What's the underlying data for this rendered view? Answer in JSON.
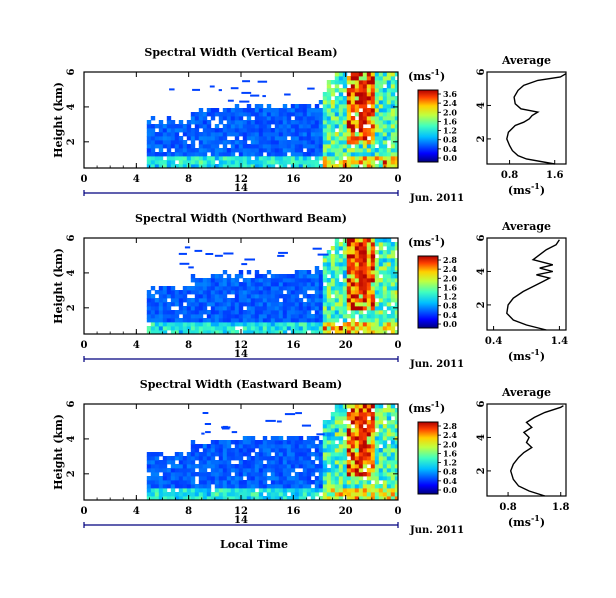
{
  "chart_data": [
    {
      "type": "heatmap",
      "title": "Spectral Width (Vertical Beam)",
      "ylabel": "Height (km)",
      "xlabel": "",
      "x_ticks": [
        "0",
        "4",
        "8",
        "12",
        "16",
        "20",
        "0"
      ],
      "y_ticks": [
        "2",
        "4",
        "6"
      ],
      "xlim": [
        0,
        24
      ],
      "ylim": [
        0.5,
        6
      ],
      "date_label": "Jun. 2011",
      "date_axis_label": "14",
      "colorbar": {
        "unit": "(ms",
        "unit_sup": "-1",
        "unit_close": ")",
        "ticks": [
          "3.6",
          "2.4",
          "2.0",
          "1.6",
          "1.2",
          "0.8",
          "0.4",
          "0.0"
        ]
      },
      "profile": {
        "title": "Average",
        "xlabel": "(ms",
        "xlabel_sup": "-1",
        "xlabel_close": ")",
        "x_ticks": [
          "0.8",
          "1.6"
        ],
        "xlim": [
          0.4,
          1.8
        ],
        "y_ticks": [
          "2",
          "4",
          "6"
        ],
        "ylim": [
          0.5,
          6
        ],
        "height_km": [
          0.5,
          0.8,
          1.0,
          1.3,
          1.6,
          2.0,
          2.4,
          2.8,
          3.0,
          3.2,
          3.4,
          3.6,
          3.8,
          4.1,
          4.5,
          4.9,
          5.2,
          5.5,
          5.7,
          5.9
        ],
        "width_ms": [
          1.6,
          1.1,
          0.95,
          0.85,
          0.8,
          0.75,
          0.78,
          0.9,
          1.05,
          1.15,
          1.2,
          1.3,
          1.0,
          0.9,
          0.88,
          0.95,
          1.05,
          1.3,
          1.7,
          1.8
        ]
      }
    },
    {
      "type": "heatmap",
      "title": "Spectral Width (Northward Beam)",
      "ylabel": "Height (km)",
      "xlabel": "",
      "x_ticks": [
        "0",
        "4",
        "8",
        "12",
        "16",
        "20",
        "0"
      ],
      "y_ticks": [
        "2",
        "4",
        "6"
      ],
      "xlim": [
        0,
        24
      ],
      "ylim": [
        0.5,
        6
      ],
      "date_label": "Jun. 2011",
      "date_axis_label": "14",
      "colorbar": {
        "unit": "(ms",
        "unit_sup": "-1",
        "unit_close": ")",
        "ticks": [
          "2.8",
          "2.4",
          "2.0",
          "1.6",
          "1.2",
          "0.8",
          "0.4",
          "0.0"
        ]
      },
      "profile": {
        "title": "Average",
        "xlabel": "(ms",
        "xlabel_sup": "-1",
        "xlabel_close": ")",
        "x_ticks": [
          "0.4",
          "1.4"
        ],
        "xlim": [
          0.3,
          1.5
        ],
        "y_ticks": [
          "2",
          "4",
          "6"
        ],
        "ylim": [
          0.5,
          6
        ],
        "height_km": [
          0.5,
          0.8,
          1.1,
          1.5,
          2.0,
          2.4,
          2.8,
          3.1,
          3.4,
          3.6,
          3.8,
          4.0,
          4.2,
          4.4,
          4.7,
          5.0,
          5.3,
          5.6,
          5.9
        ],
        "width_ms": [
          1.2,
          0.9,
          0.7,
          0.6,
          0.62,
          0.7,
          0.85,
          1.0,
          1.15,
          1.25,
          1.05,
          1.3,
          1.1,
          1.3,
          1.0,
          1.1,
          1.2,
          1.35,
          1.4
        ]
      }
    },
    {
      "type": "heatmap",
      "title": "Spectral Width (Eastward Beam)",
      "ylabel": "Height (km)",
      "xlabel": "Local Time",
      "x_ticks": [
        "0",
        "4",
        "8",
        "12",
        "16",
        "20",
        "0"
      ],
      "y_ticks": [
        "2",
        "4",
        "6"
      ],
      "xlim": [
        0,
        24
      ],
      "ylim": [
        0.5,
        6
      ],
      "date_label": "Jun. 2011",
      "date_axis_label": "14",
      "colorbar": {
        "unit": "(ms",
        "unit_sup": "-1",
        "unit_close": ")",
        "ticks": [
          "2.8",
          "2.4",
          "2.0",
          "1.6",
          "1.2",
          "0.8",
          "0.4",
          "0.0"
        ]
      },
      "profile": {
        "title": "Average",
        "xlabel": "(ms",
        "xlabel_sup": "-1",
        "xlabel_close": ")",
        "x_ticks": [
          "0.8",
          "1.8"
        ],
        "xlim": [
          0.4,
          1.9
        ],
        "y_ticks": [
          "2",
          "4",
          "6"
        ],
        "ylim": [
          0.5,
          6
        ],
        "height_km": [
          0.5,
          0.8,
          1.1,
          1.5,
          2.0,
          2.4,
          2.8,
          3.1,
          3.4,
          3.7,
          4.0,
          4.3,
          4.6,
          4.9,
          5.2,
          5.5,
          5.8,
          5.9
        ],
        "width_ms": [
          1.5,
          1.2,
          1.0,
          0.9,
          0.85,
          0.9,
          1.0,
          1.1,
          1.25,
          1.15,
          1.2,
          1.1,
          1.25,
          1.15,
          1.3,
          1.5,
          1.8,
          1.85
        ]
      }
    }
  ]
}
